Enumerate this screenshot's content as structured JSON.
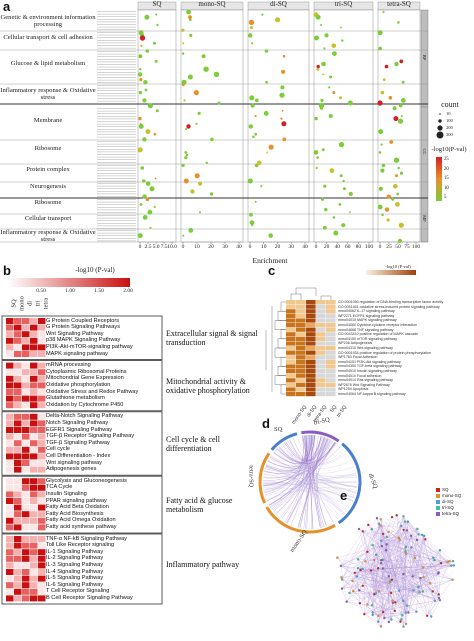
{
  "panel_a": {
    "label": "a",
    "columns": [
      "SQ",
      "mono-SQ",
      "di-SQ",
      "tri-SQ",
      "tetra-SQ"
    ],
    "categories": [
      "Genetic & environment information processing",
      "Cellular transport & cell adhesion",
      "Glucose & lipid metabolism",
      "Inflammatory response & Oxidative stress",
      "Membrane",
      "Ribosome",
      "Protein complex",
      "Neurogenesis",
      "Ribosome",
      "Cellular transport",
      "Inflammatory response & Oxidative stress"
    ],
    "side_labels": [
      "BP",
      "CC",
      "MF"
    ],
    "xlabel": "Enrichment",
    "x_ticks": [
      [
        "0",
        "2.5",
        "5.0",
        "7.5",
        "10.0"
      ],
      [
        "0",
        "10",
        "20",
        "30",
        "40"
      ],
      [
        "0",
        "10",
        "20",
        "30",
        "40"
      ],
      [
        "0",
        "20",
        "40",
        "60",
        "80",
        "100"
      ],
      [
        "0",
        "25",
        "50",
        "75",
        "100"
      ]
    ],
    "legend_count_title": "count",
    "legend_count_values": [
      "10",
      "100",
      "200",
      "300"
    ],
    "legend_color_title": "-log10(P-val)",
    "legend_color_values": [
      "25",
      "20",
      "15",
      "10",
      "5"
    ]
  },
  "panel_b": {
    "label": "b",
    "legend_title": "-log10 (P-val)",
    "legend_ticks": [
      "0.50",
      "1.00",
      "1.50",
      "2.00"
    ],
    "columns": [
      "SQ",
      "mono",
      "di",
      "tri",
      "tetra"
    ],
    "groups": [
      {
        "label": "Extracellular signal & signal transduction",
        "rows": [
          "G Protein Coupled Receptors",
          "G Protein Signaling Pathways",
          "Wnt Signaling Pathway",
          "p38 MAPK Signaling Pathway",
          "PI3K-Akt-mTOR-signaling pathway",
          "MAPK signaling pathway"
        ]
      },
      {
        "label": "Mitochondrial activity & oxidative phosphorylation",
        "rows": [
          "mRNA processing",
          "Cytoplasmic Ribosomal Proteins",
          "Mitochondrial Gene Expression",
          "Oxidative phosphorylation",
          "Oxidative Stress and Redox Pathway",
          "Glutathione metabolism",
          "Oxidation by Cytochrome P450"
        ]
      },
      {
        "label": "Cell cycle & cell differentiation",
        "rows": [
          "Delta-Notch Signaling Pathway",
          "Notch Signaling Pathway",
          "EGFR1 Signaling Pathway",
          "TGF-β Receptor Signaling Pathway",
          "TGF-β Signaling Pathway",
          "Cell cycle",
          "Cell Differentiation - Index",
          "Wnt signaling pathway",
          "Adipogenesis genes"
        ]
      },
      {
        "label": "Fatty acid & glucose metabolism",
        "rows": [
          "Glycolysis and Gluconeogenesis",
          "TCA Cycle",
          "Insulin Signaling",
          "PPAR signaling pathway",
          "Fatty Acid Beta Oxidation",
          "Fatty Acid Biosynthesis",
          "Fatty Acid Omega Oxidation",
          "Fatty acid synthese pathway"
        ]
      },
      {
        "label": "Inflammatory pathway",
        "rows": [
          "TNF-α NF-kB Signaling Pathway",
          "Toll Like Receptor signaling",
          "IL-1 Signaling Pathway",
          "IL-2 Signaling Pathway",
          "IL-3 Signaling Pathway",
          "IL-4 Signaling Pathway",
          "IL-5 Signaling Pathway",
          "IL-6 Signaling Pathway",
          "T Cell Receptor Signaling",
          "B Cell Receptor Signaling Pathway"
        ]
      }
    ]
  },
  "panel_c": {
    "label": "c",
    "legend_title": "-log10 (P-val)",
    "columns": [
      "mono-SQ",
      "di-SQ",
      "tetra-SQ",
      "SQ",
      "tri-SQ"
    ],
    "rows": [
      "GO:0001050 regulation of DNA-binding transcription factor activity",
      "GO:0051461 oxidative stress-induced protein signaling pathway",
      "mmu04062 IL-17 signaling pathway",
      "WP2271 EGFR1 signaling pathway",
      "mmu04010 MAPK signaling pathway",
      "mmu04060 Cytokine-cytokine receptor interaction",
      "mmu04668 TNF signaling pathway",
      "GO:0043410 positive regulation of MAPK cascade",
      "mmu04150 mTOR signaling pathway",
      "WP236 Adipogenesis",
      "mmu04310 Wnt signaling pathway",
      "GO:0001934 positive regulation of protein phosphorylation",
      "WP1763 Focal Adhesion",
      "mmu04151 PI3K-Akt signaling pathway",
      "mmu04350 TGF-beta signaling pathway",
      "mmu04910 Insulin signaling pathway",
      "mmu04510 Focal adhesion",
      "mmu04014 Ras signaling pathway",
      "WP2876 Wnt Signaling Pathway",
      "WP1254 Apoptosis",
      "mmu04064 NF-kappa B signaling pathway"
    ]
  },
  "panel_d": {
    "label": "d",
    "segments": [
      "tri-SQ",
      "di-SQ",
      "mono-SQ",
      "tetra-SQ",
      "SQ"
    ]
  },
  "panel_e": {
    "label": "e",
    "legend": [
      "SQ",
      "mono-SQ",
      "di-SQ",
      "tri-SQ",
      "tetra-SQ"
    ]
  },
  "colors": {
    "green": "#7ccd3a",
    "orange": "#e8902a",
    "red": "#d42020",
    "heat_dark": "#c81010",
    "heat_light": "#fbe5e5",
    "purple": "#8a5cc0",
    "blue": "#4a7fd0"
  }
}
